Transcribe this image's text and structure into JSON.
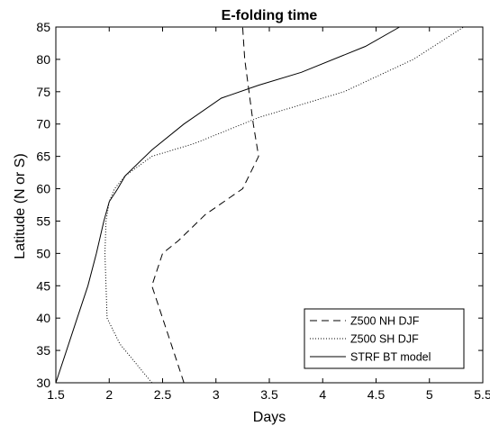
{
  "chart_data": {
    "type": "line",
    "title": "E-folding time",
    "xlabel": "Days",
    "ylabel": "Latitude (N or S)",
    "xlim": [
      1.5,
      5.5
    ],
    "ylim": [
      30,
      85
    ],
    "xticks": [
      1.5,
      2,
      2.5,
      3,
      3.5,
      4,
      4.5,
      5,
      5.5
    ],
    "xtick_labels": [
      "1.5",
      "2",
      "2.5",
      "3",
      "3.5",
      "4",
      "4.5",
      "5",
      "5.5"
    ],
    "yticks": [
      30,
      35,
      40,
      45,
      50,
      55,
      60,
      65,
      70,
      75,
      80,
      85
    ],
    "ytick_labels": [
      "30",
      "35",
      "40",
      "45",
      "50",
      "55",
      "60",
      "65",
      "70",
      "75",
      "80",
      "85"
    ],
    "grid": false,
    "legend_position": "bottom-right",
    "series": [
      {
        "name": "Z500 NH DJF",
        "line_style": "dashed",
        "color": "#000000",
        "x": [
          2.7,
          2.6,
          2.5,
          2.4,
          2.5,
          2.65,
          2.9,
          3.25,
          3.4,
          3.35,
          3.27,
          3.25
        ],
        "y": [
          30,
          35,
          40,
          45,
          50,
          52,
          56,
          60,
          65,
          70,
          80,
          85
        ]
      },
      {
        "name": "Z500 SH DJF",
        "line_style": "dotted",
        "color": "#000000",
        "x": [
          2.4,
          2.25,
          2.1,
          1.98,
          1.97,
          1.96,
          1.97,
          2.0,
          2.05,
          2.15,
          2.4,
          2.8,
          3.4,
          4.2,
          4.85,
          5.32
        ],
        "y": [
          30,
          33,
          36,
          40,
          45,
          50,
          55,
          58,
          60,
          62,
          65,
          67,
          71,
          75,
          80,
          85
        ]
      },
      {
        "name": "STRF BT model",
        "line_style": "solid",
        "color": "#000000",
        "x": [
          1.5,
          1.58,
          1.7,
          1.8,
          1.88,
          1.95,
          2.0,
          2.08,
          2.15,
          2.4,
          2.7,
          3.05,
          3.4,
          3.8,
          4.4,
          4.72
        ],
        "y": [
          30,
          34,
          40,
          45,
          50,
          55,
          58,
          60,
          62,
          66,
          70,
          74,
          76,
          78,
          82,
          85
        ]
      }
    ]
  }
}
